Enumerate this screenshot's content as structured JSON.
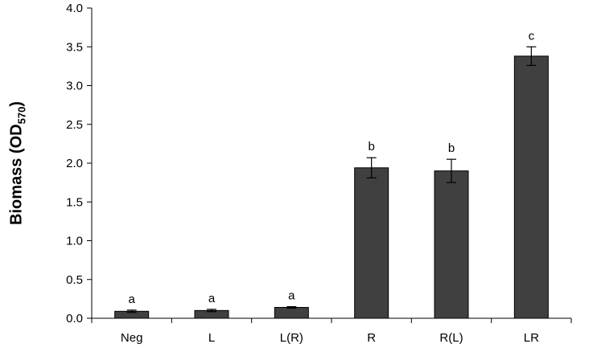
{
  "chart_data": {
    "type": "bar",
    "title": "",
    "xlabel": "",
    "ylabel": {
      "main": "Biomass (OD",
      "subscript": "570",
      "close": ")"
    },
    "ylim": [
      0,
      4.0
    ],
    "yticks": [
      "0.0",
      "0.5",
      "1.0",
      "1.5",
      "2.0",
      "2.5",
      "3.0",
      "3.5",
      "4.0"
    ],
    "categories": [
      "Neg",
      "L",
      "L(R)",
      "R",
      "R(L)",
      "LR"
    ],
    "values": [
      0.09,
      0.1,
      0.14,
      1.94,
      1.9,
      3.38
    ],
    "errors": [
      0.015,
      0.015,
      0.01,
      0.13,
      0.15,
      0.12
    ],
    "significance": [
      "a",
      "a",
      "a",
      "b",
      "b",
      "c"
    ],
    "bar_color": "#404040",
    "grid": false,
    "legend": "none"
  }
}
